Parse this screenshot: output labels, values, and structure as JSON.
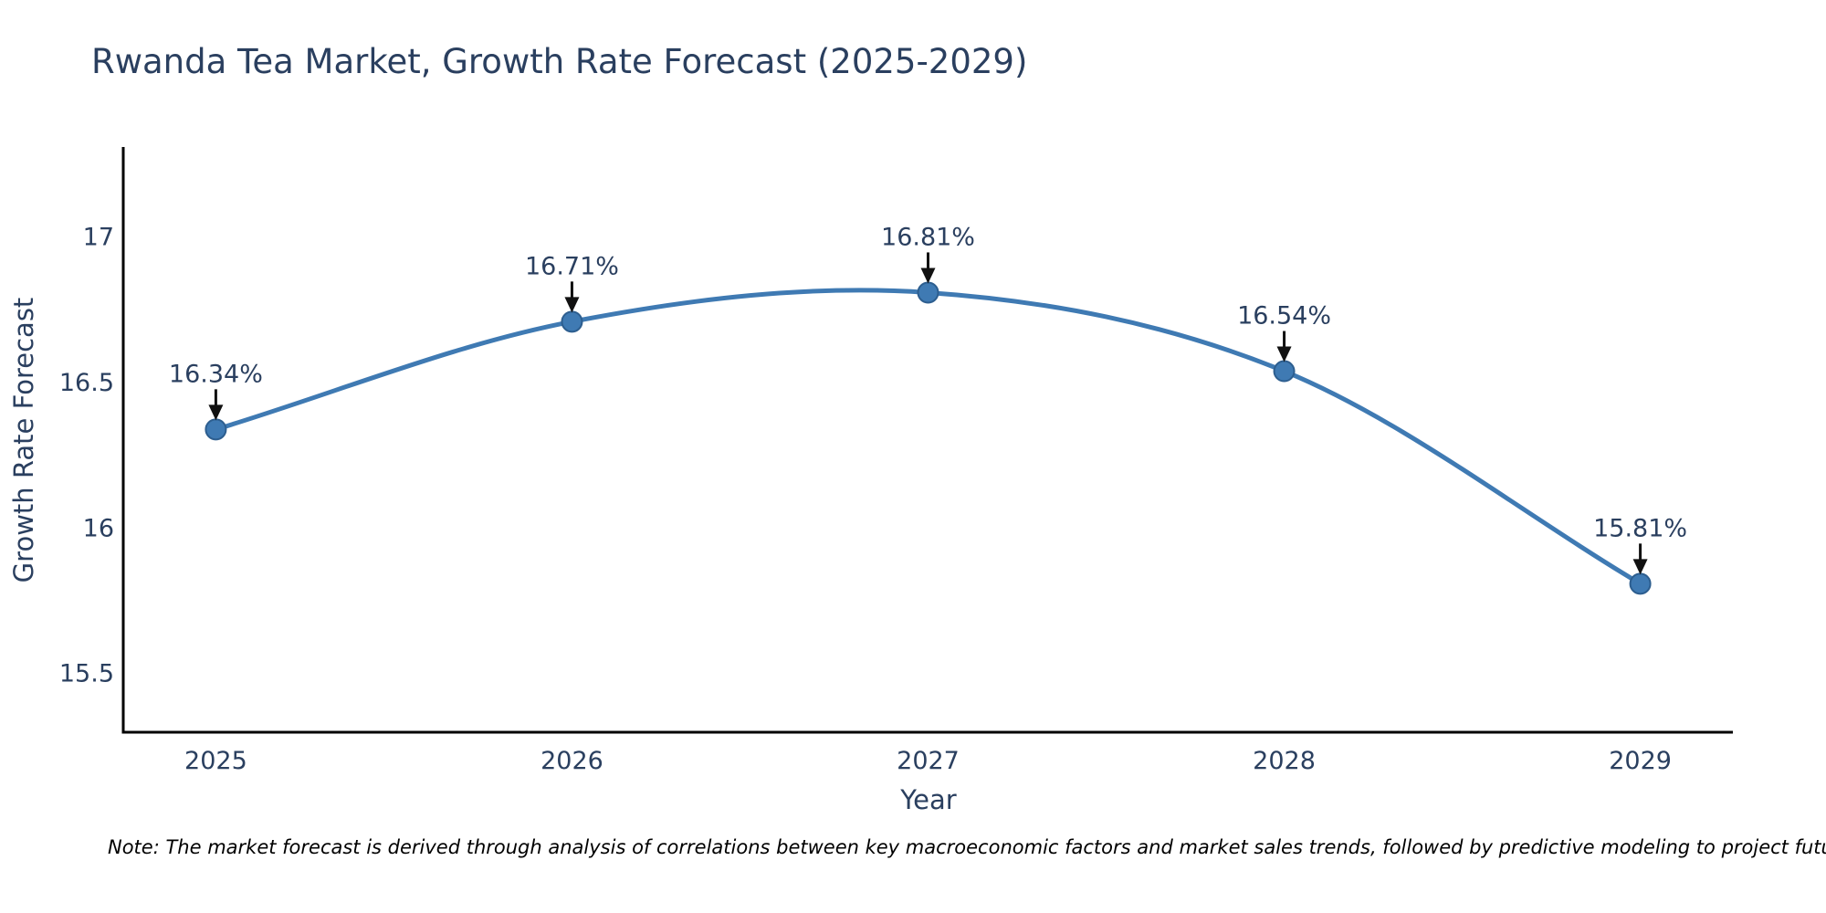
{
  "page": {
    "title": "Rwanda Tea Market, Growth Rate Forecast (2025-2029)",
    "note": "Note: The market forecast is derived through analysis of correlations between key macroeconomic factors and market sales trends, followed by predictive modeling to project future sal"
  },
  "colors": {
    "line": "#3f7ab3",
    "marker_fill": "#3f7ab3",
    "marker_edge": "#2d5e8f",
    "chart_text": "#2a3f5f",
    "axis_line": "#000000",
    "arrow": "#111111",
    "background": "#ffffff"
  },
  "chart_data": {
    "type": "line",
    "title": "Rwanda Tea Market, Growth Rate Forecast (2025-2029)",
    "xlabel": "Year",
    "ylabel": "Growth Rate Forecast",
    "x": [
      2025,
      2026,
      2027,
      2028,
      2029
    ],
    "series": [
      {
        "name": "Growth Rate Forecast",
        "values": [
          16.34,
          16.71,
          16.81,
          16.54,
          15.81
        ]
      }
    ],
    "point_labels": [
      "16.34%",
      "16.71%",
      "16.81%",
      "16.54%",
      "15.81%"
    ],
    "xtick_labels": [
      "2025",
      "2026",
      "2027",
      "2028",
      "2029"
    ],
    "ytick_values": [
      15.5,
      16,
      16.5,
      17
    ],
    "ytick_labels": [
      "15.5",
      "16",
      "16.5",
      "17"
    ],
    "xlim": [
      2024.74,
      2029.26
    ],
    "ylim": [
      15.3,
      17.31
    ],
    "grid": false,
    "legend": "none",
    "line_shape": "spline",
    "annotation_style": "down-arrow"
  }
}
